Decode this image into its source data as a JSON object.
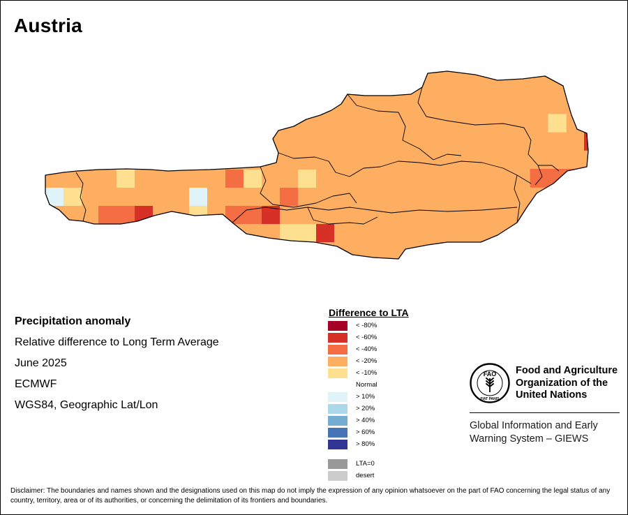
{
  "map": {
    "title": "Austria",
    "palette": {
      "lt80": "#a50026",
      "lt60": "#d73027",
      "lt40": "#f46d43",
      "lt20": "#fdae61",
      "lt10": "#fee090",
      "normal": "#ffffff",
      "gt10": "#e0f3f8",
      "gt20": "#abd9e9",
      "gt40": "#74add1",
      "gt60": "#4575b4",
      "gt80": "#313695",
      "lta0": "#999999",
      "desert": "#cccccc"
    },
    "grid_rows": [
      ".........................KK.3..2....",
      "......................111KK41..34...",
      ".................4.3344.24444...44.4",
      ".................33111.2233311344444",
      "...............333332133322334422433",
      "...............3222.213133..2332",
      "...............3.33.213...33",
      "...................33"
    ]
  },
  "info": {
    "title": "Precipitation anomaly",
    "line1": "Relative difference to Long Term Average",
    "line2": "June 2025",
    "line3": "ECMWF",
    "line4": "WGS84, Geographic Lat/Lon"
  },
  "legend": {
    "title": "Difference to LTA",
    "items": [
      {
        "label": "< -80%",
        "color": "#a50026"
      },
      {
        "label": "< -60%",
        "color": "#d73027"
      },
      {
        "label": "< -40%",
        "color": "#f46d43"
      },
      {
        "label": "< -20%",
        "color": "#fdae61"
      },
      {
        "label": "< -10%",
        "color": "#fee090"
      },
      {
        "label": "Normal",
        "color": "#ffffff"
      },
      {
        "label": "> 10%",
        "color": "#e0f3f8"
      },
      {
        "label": "> 20%",
        "color": "#abd9e9"
      },
      {
        "label": "> 40%",
        "color": "#74add1"
      },
      {
        "label": "> 60%",
        "color": "#4575b4"
      },
      {
        "label": "> 80%",
        "color": "#313695"
      },
      {
        "label": "LTA=0",
        "color": "#999999"
      },
      {
        "label": "desert",
        "color": "#cccccc"
      }
    ]
  },
  "logo": {
    "org_line1": "Food and Agriculture",
    "org_line2": "Organization of the",
    "org_line3": "United Nations",
    "emblem_letters": "FAO",
    "emblem_motto": "FIAT PANIS",
    "giews_line1": "Global Information and Early",
    "giews_line2": "Warning System – GIEWS"
  },
  "disclaimer": "Disclaimer: The boundaries and names shown and the designations used on this map do not imply the expression of any opinion whatsoever on the part of FAO concerning the legal status of any country, territory, area or of its authorities, or concerning the delimitation of its frontiers and boundaries."
}
